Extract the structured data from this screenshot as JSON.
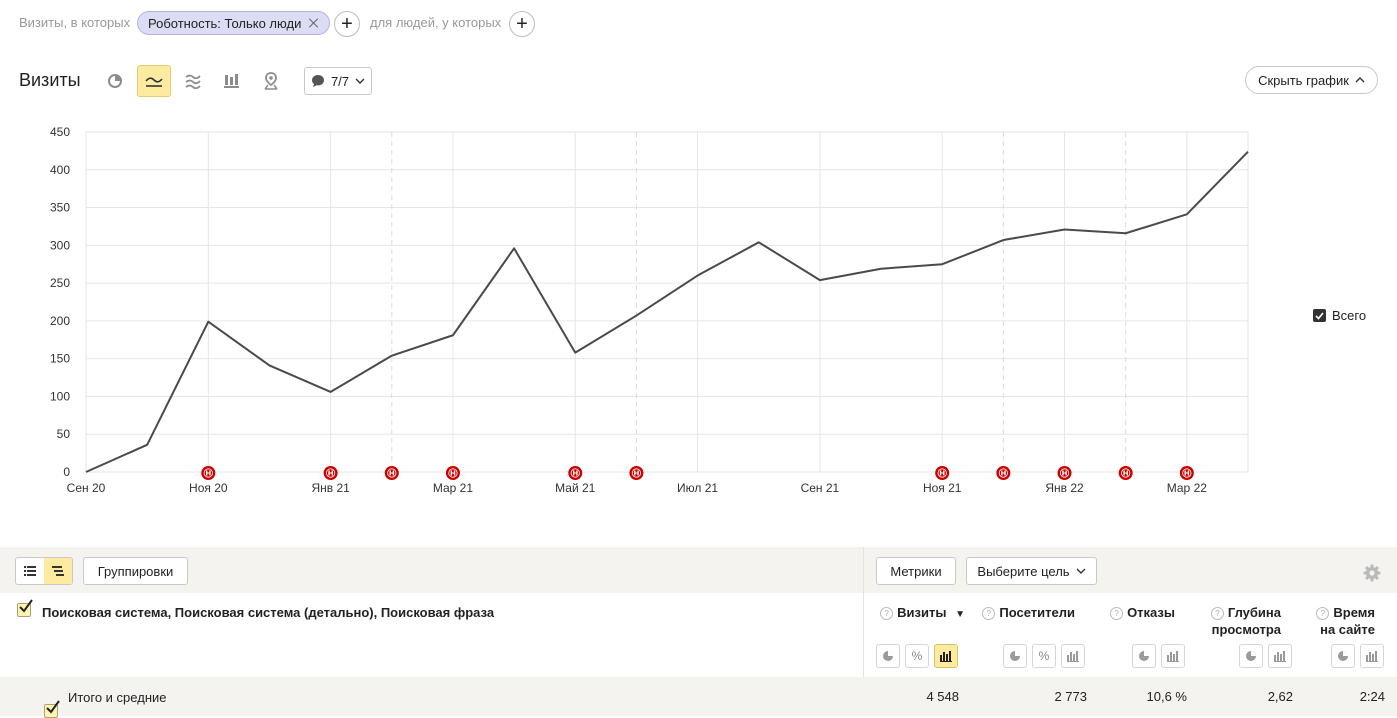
{
  "segment": {
    "prefix": "Визиты, в которых",
    "chip_label": "Роботность: Только люди",
    "people_text": "для людей, у которых"
  },
  "chart_header": {
    "title": "Визиты",
    "annotations_label": "7/7",
    "hide_chart_label": "Скрыть график",
    "chart_types": [
      "pie-chart-icon",
      "line-chart-icon",
      "area-chart-icon",
      "bar-chart-icon",
      "map-icon"
    ],
    "active_type": "line-chart-icon"
  },
  "legend": {
    "total_label": "Всего"
  },
  "chart_data": {
    "type": "line",
    "y_ticks": [
      "0",
      "50",
      "100",
      "150",
      "200",
      "250",
      "300",
      "350",
      "400",
      "450"
    ],
    "ylim": [
      0,
      450
    ],
    "x_tick_labels": [
      "Сен 20",
      "Ноя 20",
      "Янв 21",
      "Мар 21",
      "Май 21",
      "Июл 21",
      "Сен 21",
      "Ноя 21",
      "Янв 22",
      "Мар 22"
    ],
    "x_tick_month_index": [
      0,
      2,
      4,
      6,
      8,
      10,
      12,
      14,
      16,
      18
    ],
    "year_boundary_month_index": [
      5,
      9,
      15,
      17
    ],
    "series": [
      {
        "name": "Всего",
        "color": "#4a4a4a",
        "month_index": [
          0,
          1,
          2,
          3,
          4,
          5,
          6,
          7,
          8,
          9,
          10,
          11,
          12,
          13,
          14,
          15,
          16,
          17,
          18,
          19
        ],
        "values": [
          0,
          36,
          199,
          141,
          106,
          154,
          181,
          296,
          158,
          207,
          260,
          304,
          254,
          269,
          275,
          307,
          321,
          316,
          341,
          424
        ]
      }
    ],
    "annotation_month_index": [
      2,
      4,
      5,
      6,
      8,
      9,
      14,
      15,
      16,
      17,
      18
    ],
    "annotation_letter": "Н",
    "annotation_color": "#cc0000",
    "grid": true
  },
  "table": {
    "groupings_label": "Группировки",
    "metrics_label": "Метрики",
    "goal_label": "Выберите цель",
    "dimension_title": "Поисковая система, Поисковая система (детально), Поисковая фраза",
    "metrics": [
      {
        "line1": "Визиты",
        "line2": "",
        "sorted": true
      },
      {
        "line1": "Посетители",
        "line2": "",
        "sorted": false
      },
      {
        "line1": "Отказы",
        "line2": "",
        "sorted": false
      },
      {
        "line1": "Глубина",
        "line2": "просмотра",
        "sorted": false
      },
      {
        "line1": "Время",
        "line2": "на сайте",
        "sorted": false
      }
    ],
    "pct_glyph": "%",
    "help_glyph": "?",
    "sort_glyph": "▼",
    "totals": {
      "label": "Итого и средние",
      "values": [
        "4 548",
        "2 773",
        "10,6 %",
        "2,62",
        "2:24"
      ]
    }
  }
}
